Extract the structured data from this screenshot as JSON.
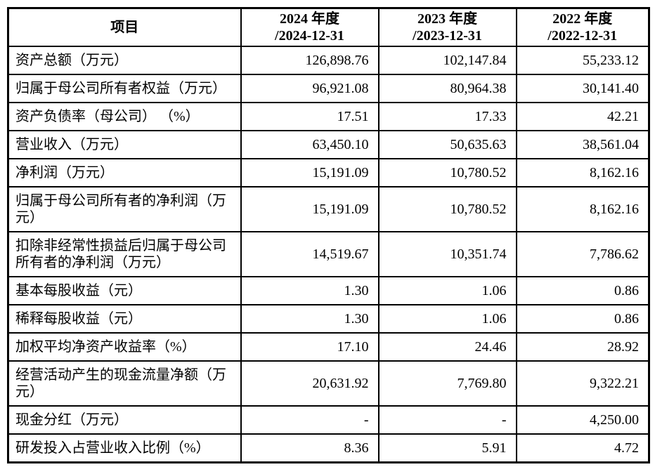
{
  "colors": {
    "border": "#000000",
    "background": "#ffffff",
    "text": "#000000"
  },
  "table": {
    "header": {
      "item_label": "项目",
      "columns": [
        {
          "line1": "2024 年度",
          "line2": "/2024-12-31"
        },
        {
          "line1": "2023 年度",
          "line2": "/2023-12-31"
        },
        {
          "line1": "2022 年度",
          "line2": "/2022-12-31"
        }
      ]
    },
    "rows": [
      {
        "label": "资产总额（万元）",
        "values": [
          "126,898.76",
          "102,147.84",
          "55,233.12"
        ]
      },
      {
        "label": "归属于母公司所有者权益（万元）",
        "values": [
          "96,921.08",
          "80,964.38",
          "30,141.40"
        ]
      },
      {
        "label": "资产负债率（母公司） （%）",
        "values": [
          "17.51",
          "17.33",
          "42.21"
        ]
      },
      {
        "label": "营业收入（万元）",
        "values": [
          "63,450.10",
          "50,635.63",
          "38,561.04"
        ]
      },
      {
        "label": "净利润（万元）",
        "values": [
          "15,191.09",
          "10,780.52",
          "8,162.16"
        ]
      },
      {
        "label": "归属于母公司所有者的净利润（万元）",
        "values": [
          "15,191.09",
          "10,780.52",
          "8,162.16"
        ]
      },
      {
        "label": "扣除非经常性损益后归属于母公司所有者的净利润（万元）",
        "values": [
          "14,519.67",
          "10,351.74",
          "7,786.62"
        ]
      },
      {
        "label": "基本每股收益（元）",
        "values": [
          "1.30",
          "1.06",
          "0.86"
        ]
      },
      {
        "label": "稀释每股收益（元）",
        "values": [
          "1.30",
          "1.06",
          "0.86"
        ]
      },
      {
        "label": "加权平均净资产收益率（%）",
        "values": [
          "17.10",
          "24.46",
          "28.92"
        ]
      },
      {
        "label": "经营活动产生的现金流量净额（万元）",
        "values": [
          "20,631.92",
          "7,769.80",
          "9,322.21"
        ]
      },
      {
        "label": "现金分红（万元）",
        "values": [
          "-",
          "-",
          "4,250.00"
        ]
      },
      {
        "label": "研发投入占营业收入比例（%）",
        "values": [
          "8.36",
          "5.91",
          "4.72"
        ]
      }
    ]
  }
}
